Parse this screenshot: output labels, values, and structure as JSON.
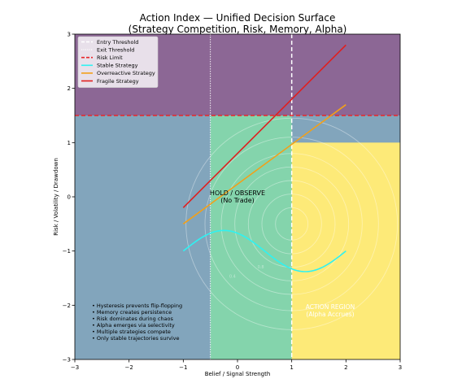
{
  "chart_data": {
    "type": "line",
    "title": "Action Index — Unified Decision Surface",
    "subtitle": "(Strategy Competition, Risk, Memory, Alpha)",
    "xlabel": "Belief / Signal Strength",
    "ylabel": "Risk / Volatility / Drawdown",
    "xlim": [
      -3,
      3
    ],
    "ylim": [
      -3,
      3
    ],
    "xticks": [
      -3,
      -2,
      -1,
      0,
      1,
      2,
      3
    ],
    "yticks": [
      -3,
      -2,
      -1,
      0,
      1,
      2,
      3
    ],
    "xtick_labels": [
      "−3",
      "−2",
      "−1",
      "0",
      "1",
      "2",
      "3"
    ],
    "ytick_labels": [
      "−3",
      "−2",
      "−1",
      "0",
      "1",
      "2",
      "3"
    ],
    "grid": false,
    "legend_position": "top-left",
    "regions": [
      {
        "name": "high-risk",
        "x": [
          -3,
          3
        ],
        "y": [
          1.5,
          3
        ],
        "color": "#8c6795"
      },
      {
        "name": "background",
        "x": [
          -3,
          3
        ],
        "y": [
          -3,
          1.5
        ],
        "color": "#82a5bc"
      },
      {
        "name": "hold",
        "x": [
          -0.5,
          1.0
        ],
        "y": [
          -3,
          1.5
        ],
        "color": "#84d4ac"
      },
      {
        "name": "action",
        "x": [
          1.0,
          3.0
        ],
        "y": [
          -3,
          1.0
        ],
        "color": "#fdea78"
      }
    ],
    "thresholds": [
      {
        "name": "Entry Threshold",
        "axis": "x",
        "value": 1.0,
        "color": "#ffffff",
        "style": "dashed"
      },
      {
        "name": "Exit Threshold",
        "axis": "x",
        "value": -0.5,
        "color": "#ffffff",
        "style": "dotted"
      },
      {
        "name": "Risk Limit",
        "axis": "y",
        "value": 1.5,
        "color": "#e8262a",
        "style": "dashed"
      }
    ],
    "series": [
      {
        "name": "Stable Strategy",
        "color": "#2ef2f2",
        "type": "sine",
        "x_range": [
          -1,
          2
        ],
        "base": -1.0,
        "amplitude": 0.38,
        "period": 3
      },
      {
        "name": "Overreactive Strategy",
        "color": "#f2a019",
        "type": "linear",
        "x": [
          -1,
          2
        ],
        "y": [
          -0.5,
          1.7
        ]
      },
      {
        "name": "Fragile Strategy",
        "color": "#e01f1f",
        "type": "linear",
        "x": [
          -1,
          2
        ],
        "y": [
          -0.2,
          2.8
        ]
      }
    ],
    "contours": {
      "center": [
        1.0,
        -0.5
      ],
      "radii": [
        0.3,
        0.55,
        0.8,
        1.05,
        1.3,
        1.6,
        1.95
      ],
      "labels": [
        "0.8",
        "0.4"
      ]
    },
    "annotations": {
      "hold": [
        "HOLD / OBSERVE",
        "(No Trade)"
      ],
      "action": [
        "ACTION REGION",
        "(Alpha Accrues)"
      ],
      "notes": [
        "• Hysteresis prevents flip-flopping",
        "• Memory creates persistence",
        "• Risk dominates during chaos",
        "• Alpha emerges via selectivity",
        "• Multiple strategies compete",
        "• Only stable trajectories survive"
      ]
    }
  }
}
